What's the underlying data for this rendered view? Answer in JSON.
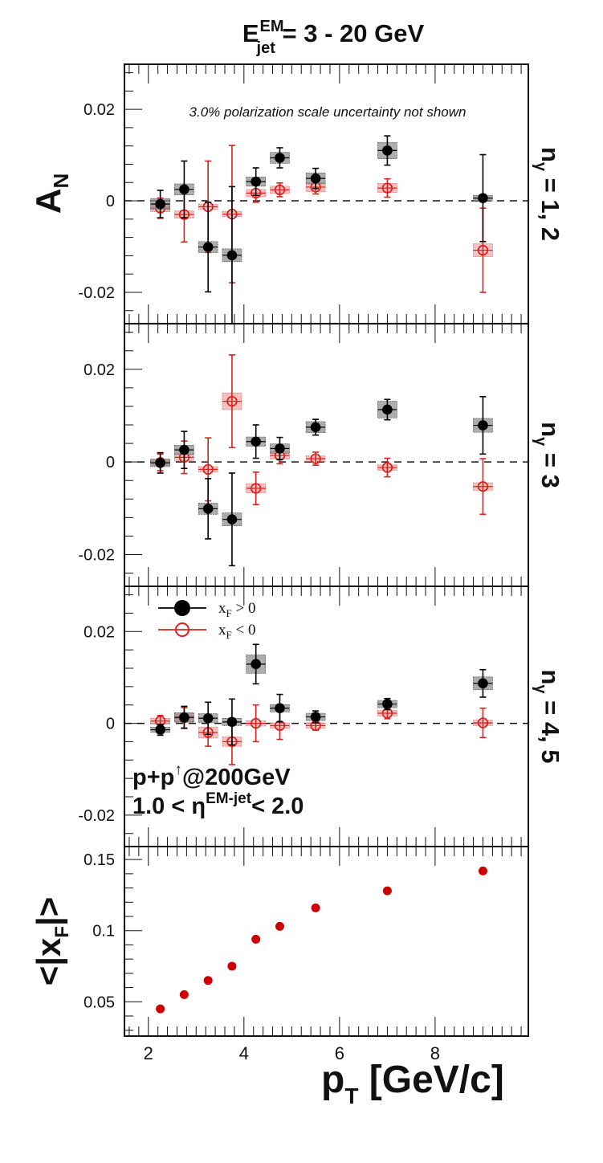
{
  "title": {
    "main": "E",
    "sup": "EM",
    "sub": "jet",
    "rest": " = 3 - 20 GeV"
  },
  "chart_data": [
    {
      "type": "scatter",
      "panel_label": {
        "main": "n",
        "sub": "γ",
        "rest": " = 1, 2"
      },
      "ylabel": {
        "main": "A",
        "sub": "N"
      },
      "annotation": "3.0% polarization scale uncertainty not shown",
      "ylim": [
        -0.0265,
        0.0295
      ],
      "yticks": [
        -0.02,
        0,
        0.02
      ],
      "ytick_labels": [
        "-0.02",
        "0",
        "0.02"
      ],
      "zero_line": true,
      "series": [
        {
          "marker": "filled",
          "color": "#000000",
          "x": [
            2.25,
            2.75,
            3.25,
            3.75,
            4.25,
            4.75,
            5.5,
            7.0,
            9.0
          ],
          "y": [
            -0.0007,
            0.0025,
            -0.0101,
            -0.0119,
            0.0042,
            0.0094,
            0.0049,
            0.011,
            0.0006
          ],
          "yerr": [
            0.003,
            0.0062,
            0.0098,
            0.015,
            0.003,
            0.0022,
            0.0022,
            0.0032,
            0.0095
          ],
          "syst": [
            0.0012,
            0.0012,
            0.0012,
            0.0014,
            0.001,
            0.0012,
            0.0012,
            0.0018,
            0.0006
          ]
        },
        {
          "marker": "open",
          "color": "#d9201c",
          "x": [
            2.25,
            2.75,
            3.25,
            3.75,
            4.25,
            4.75,
            5.5,
            7.0,
            9.0
          ],
          "y": [
            -0.0016,
            -0.003,
            -0.0013,
            -0.0029,
            0.0017,
            0.0024,
            0.003,
            0.0028,
            -0.0108
          ],
          "yerr": [
            0.0022,
            0.006,
            0.01,
            0.015,
            0.002,
            0.0015,
            0.0015,
            0.002,
            0.0092
          ],
          "syst": [
            0.0008,
            0.0008,
            0.0006,
            0.0006,
            0.0008,
            0.0008,
            0.001,
            0.001,
            0.0014
          ]
        }
      ]
    },
    {
      "type": "scatter",
      "panel_label": {
        "main": "n",
        "sub": "γ",
        "rest": " = 3"
      },
      "ylim": [
        -0.0265,
        0.0295
      ],
      "yticks": [
        -0.02,
        0,
        0.02
      ],
      "ytick_labels": [
        "-0.02",
        "0",
        "0.02"
      ],
      "zero_line": true,
      "series": [
        {
          "marker": "filled",
          "color": "#000000",
          "x": [
            2.25,
            2.75,
            3.25,
            3.75,
            4.25,
            4.75,
            5.5,
            7.0,
            9.0
          ],
          "y": [
            -0.0002,
            0.0026,
            -0.0101,
            -0.0124,
            0.0044,
            0.0029,
            0.0075,
            0.0113,
            0.0079
          ],
          "yerr": [
            0.0022,
            0.004,
            0.0065,
            0.01,
            0.0036,
            0.0024,
            0.0017,
            0.0022,
            0.0062
          ],
          "syst": [
            0.0008,
            0.001,
            0.0012,
            0.0014,
            0.001,
            0.001,
            0.0012,
            0.0018,
            0.0015
          ]
        },
        {
          "marker": "open",
          "color": "#d9201c",
          "x": [
            2.25,
            2.75,
            3.25,
            3.75,
            4.25,
            4.75,
            5.5,
            7.0,
            9.0
          ],
          "y": [
            -0.0001,
            0.001,
            -0.0016,
            0.0131,
            -0.0057,
            0.0014,
            0.0007,
            -0.0012,
            -0.0053
          ],
          "yerr": [
            0.0018,
            0.0035,
            0.0068,
            0.01,
            0.0035,
            0.0018,
            0.0014,
            0.002,
            0.006
          ],
          "syst": [
            0.0006,
            0.0008,
            0.0006,
            0.0018,
            0.001,
            0.0008,
            0.0006,
            0.0006,
            0.0008
          ]
        }
      ]
    },
    {
      "type": "scatter",
      "panel_label": {
        "main": "n",
        "sub": "γ",
        "rest": " = 4, 5"
      },
      "ylim": [
        -0.0265,
        0.0295
      ],
      "yticks": [
        -0.02,
        0,
        0.02
      ],
      "ytick_labels": [
        "-0.02",
        "0",
        "0.02"
      ],
      "zero_line": true,
      "legend": [
        {
          "marker": "filled",
          "color": "#000000",
          "label": {
            "main": "x",
            "sub": "F",
            "rest": " > 0"
          }
        },
        {
          "marker": "open",
          "color": "#d9201c",
          "label": {
            "main": "x",
            "sub": "F",
            "rest": " < 0"
          }
        }
      ],
      "annotation_lines": [
        {
          "main": "p+p",
          "sup": "↑",
          "rest": "@200GeV"
        },
        {
          "main": "1.0 < η",
          "sup": "EM-jet",
          "rest": "< 2.0"
        }
      ],
      "series": [
        {
          "marker": "filled",
          "color": "#000000",
          "x": [
            2.25,
            2.75,
            3.25,
            3.75,
            4.25,
            4.75,
            5.5,
            7.0,
            9.0
          ],
          "y": [
            -0.0014,
            0.0013,
            0.0011,
            0.0003,
            0.0129,
            0.0033,
            0.0014,
            0.0042,
            0.0087
          ],
          "yerr": [
            0.0012,
            0.0024,
            0.0035,
            0.005,
            0.0043,
            0.003,
            0.0013,
            0.0012,
            0.003
          ],
          "syst": [
            0.0006,
            0.001,
            0.001,
            0.0008,
            0.002,
            0.0008,
            0.0008,
            0.0008,
            0.0014
          ]
        },
        {
          "marker": "open",
          "color": "#d9201c",
          "x": [
            2.25,
            2.75,
            3.25,
            3.75,
            4.25,
            4.75,
            5.5,
            7.0,
            9.0
          ],
          "y": [
            0.0005,
            0.0012,
            -0.002,
            -0.004,
            0.0,
            -0.0005,
            -0.0005,
            0.0022,
            0.0001
          ],
          "yerr": [
            0.0012,
            0.0022,
            0.003,
            0.005,
            0.004,
            0.003,
            0.001,
            0.0012,
            0.0032
          ],
          "syst": [
            0.0006,
            0.001,
            0.0012,
            0.001,
            0.0006,
            0.0006,
            0.0006,
            0.0006,
            0.0006
          ]
        }
      ]
    },
    {
      "type": "scatter",
      "ylabel": {
        "pre": "<|x",
        "sub": "F",
        "post": "|>"
      },
      "xlabel": {
        "main": "p",
        "sub": "T",
        "rest": " [GeV/c]"
      },
      "xlim": [
        1.5,
        9.95
      ],
      "xticks": [
        2,
        4,
        6,
        8
      ],
      "xtick_labels": [
        "2",
        "4",
        "6",
        "8"
      ],
      "ylim": [
        0.027,
        0.158
      ],
      "yticks": [
        0.05,
        0.1,
        0.15
      ],
      "ytick_labels": [
        "0.05",
        "0.1",
        "0.15"
      ],
      "series": [
        {
          "marker": "filled",
          "color": "#cc0000",
          "x": [
            2.25,
            2.75,
            3.25,
            3.75,
            4.25,
            4.75,
            5.5,
            7.0,
            9.0
          ],
          "y": [
            0.045,
            0.055,
            0.065,
            0.075,
            0.094,
            0.103,
            0.116,
            0.128,
            0.142
          ]
        }
      ]
    }
  ]
}
